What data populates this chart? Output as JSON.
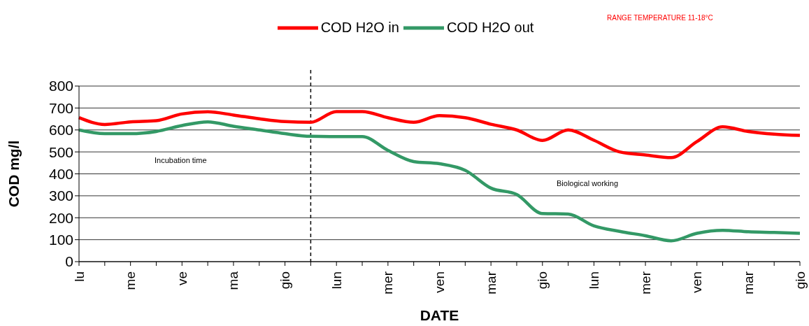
{
  "chart_data": {
    "type": "line",
    "xlabel": "DATE",
    "ylabel": "COD mg/l",
    "categories": [
      "lu",
      null,
      "me",
      null,
      "ve",
      null,
      "ma",
      null,
      "gio",
      null,
      "lun",
      null,
      "mer",
      null,
      "ven",
      null,
      "mar",
      null,
      "gio",
      null,
      "lun",
      null,
      "mer",
      null,
      "ven",
      null,
      "mar",
      null,
      "gio"
    ],
    "series": [
      {
        "name": "COD H2O in",
        "color": "#ff0000",
        "values": [
          656,
          625,
          637,
          642,
          673,
          683,
          668,
          651,
          638,
          635,
          684,
          684,
          656,
          635,
          665,
          656,
          626,
          600,
          552,
          600,
          553,
          500,
          486,
          474,
          547,
          614,
          593,
          581,
          575
        ]
      },
      {
        "name": "COD H2O out",
        "color": "#339966",
        "values": [
          600,
          583,
          583,
          593,
          620,
          637,
          617,
          600,
          583,
          571,
          570,
          570,
          507,
          456,
          446,
          416,
          335,
          306,
          219,
          217,
          163,
          138,
          118,
          95,
          129,
          143,
          136,
          133,
          129
        ]
      }
    ],
    "ylim": [
      0,
      800
    ],
    "yticks": [
      0,
      100,
      200,
      300,
      400,
      500,
      600,
      700,
      800
    ],
    "grid": "y",
    "legend": "top",
    "marker": "none",
    "line_style": "solid",
    "annotations": [
      "Incubation time",
      "Biological working",
      "RANGE TEMPERATURE 11-18°C"
    ]
  }
}
